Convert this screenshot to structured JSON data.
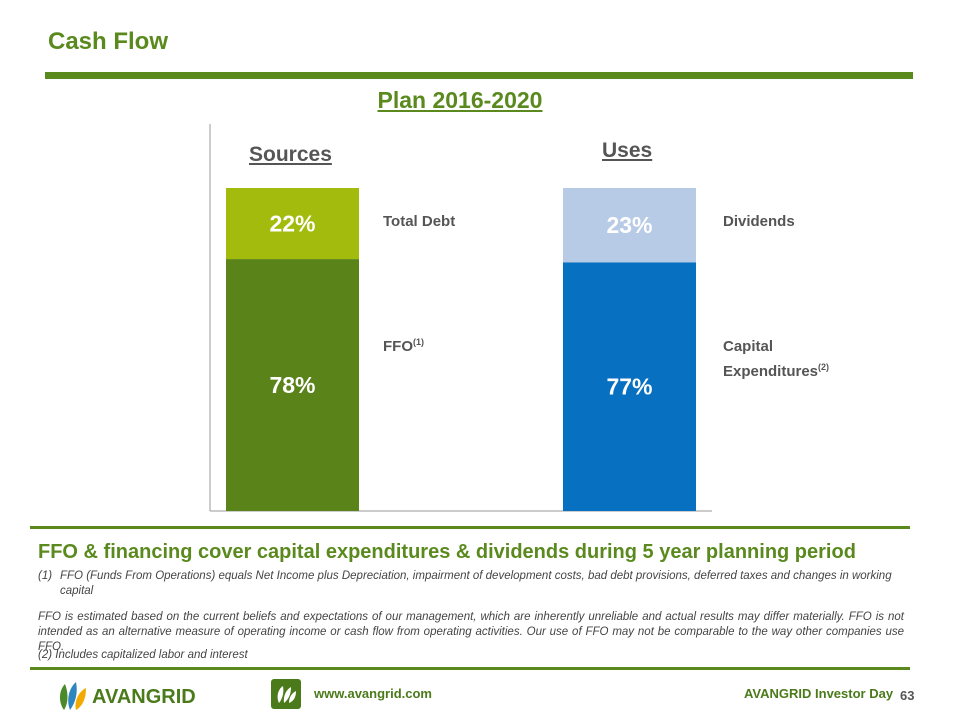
{
  "page": {
    "title": "Cash Flow",
    "plan_title": "Plan 2016-2020"
  },
  "chart_data": {
    "type": "bar",
    "stacked": true,
    "categories": [
      "Sources",
      "Uses"
    ],
    "series": [
      {
        "name": "FFO",
        "category": "Sources",
        "value": 78,
        "label": "78%",
        "color": "#5a841a"
      },
      {
        "name": "Total Debt",
        "category": "Sources",
        "value": 22,
        "label": "22%",
        "color": "#a3bb0c"
      },
      {
        "name": "Capital Expenditures",
        "category": "Uses",
        "value": 77,
        "label": "77%",
        "color": "#0870c0"
      },
      {
        "name": "Dividends",
        "category": "Uses",
        "value": 23,
        "label": "23%",
        "color": "#b8cbe6"
      }
    ],
    "ylim": [
      0,
      100
    ]
  },
  "labels": {
    "total_debt": "Total Debt",
    "ffo": "FFO",
    "ffo_sup": "(1)",
    "dividends": "Dividends",
    "capex_line1": "Capital",
    "capex_line2": "Expenditures",
    "capex_sup": "(2)"
  },
  "headline": "FFO & financing cover capital expenditures & dividends during 5 year planning period",
  "notes": {
    "note1_marker": "(1)",
    "note1_text": "FFO (Funds From Operations) equals Net Income plus Depreciation, impairment of development costs, bad debt provisions, deferred taxes and changes in working capital",
    "disclaimer": "FFO is estimated based on the current beliefs and expectations of our management, which are inherently unreliable and actual results may differ materially. FFO is not intended as an alternative measure of operating income or cash flow from operating activities. Our use of FFO may not be comparable to the way other companies use FFO.",
    "note2": "(2)  Includes capitalized labor and interest"
  },
  "footer": {
    "logo_text": "AVANGRID",
    "url": "www.avangrid.com",
    "event": "AVANGRID Investor Day",
    "page_number": "63"
  },
  "colors": {
    "brand_green": "#5a8a1e",
    "debt_green": "#a3bb0c",
    "capex_blue": "#0870c0",
    "dividend_blue": "#b8cbe6"
  }
}
